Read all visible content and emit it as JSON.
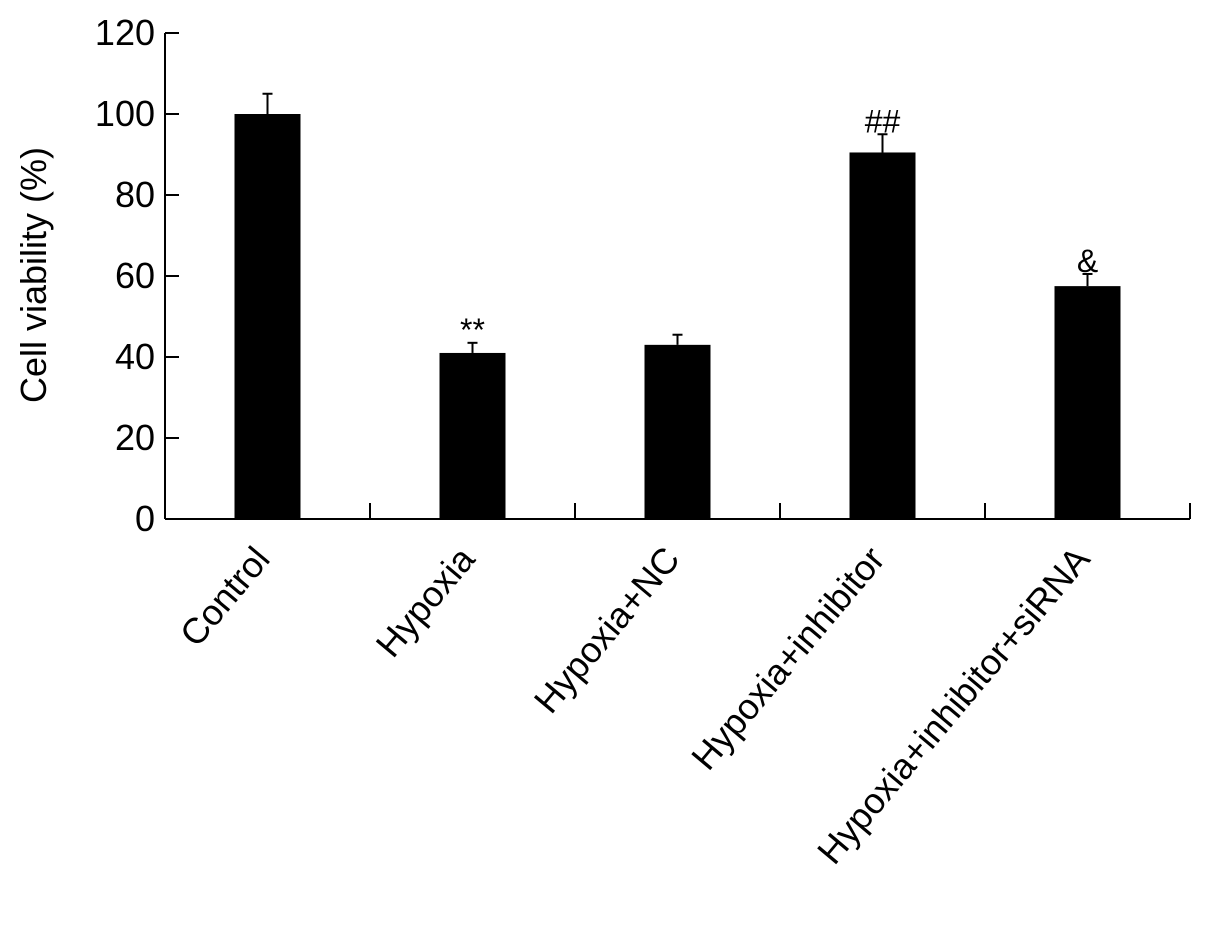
{
  "chart_data": {
    "type": "bar",
    "title": "",
    "xlabel": "",
    "ylabel": "Cell viability (%)",
    "ylim": [
      0,
      120
    ],
    "yticks": [
      0,
      20,
      40,
      60,
      80,
      100,
      120
    ],
    "grid": false,
    "legend": "none",
    "categories": [
      "Control",
      "Hypoxia",
      "Hypoxia+NC",
      "Hypoxia+inhibitor",
      "Hypoxia+inhibitor+siRNA"
    ],
    "values": [
      100,
      41,
      43,
      90.5,
      57.5
    ],
    "errors": [
      5,
      2.5,
      2.5,
      4.5,
      3
    ],
    "annotations": [
      "",
      "**",
      "",
      "##",
      "&"
    ],
    "bar_color": "#000000"
  }
}
